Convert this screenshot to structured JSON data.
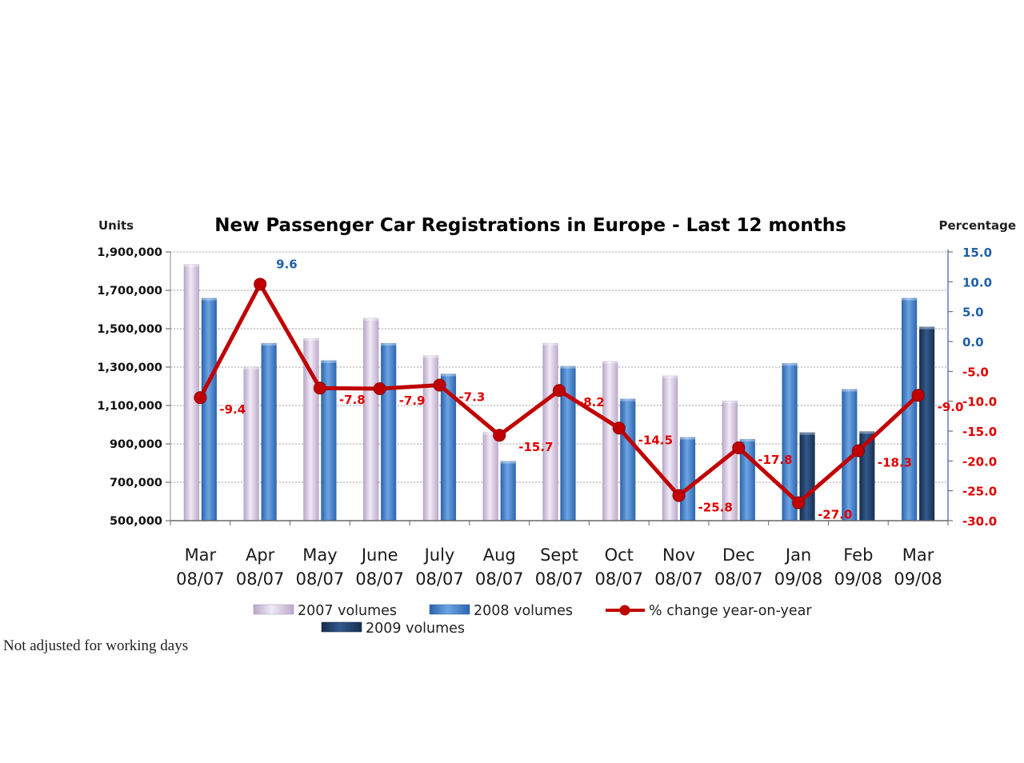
{
  "chart_data": {
    "type": "bar",
    "title": "New Passenger Car Registrations in Europe - Last 12 months",
    "left_axis_title": "Units",
    "right_axis_title": "Percentage",
    "categories": [
      {
        "line1": "Mar",
        "line2": "08/07"
      },
      {
        "line1": "Apr",
        "line2": "08/07"
      },
      {
        "line1": "May",
        "line2": "08/07"
      },
      {
        "line1": "June",
        "line2": "08/07"
      },
      {
        "line1": "July",
        "line2": "08/07"
      },
      {
        "line1": "Aug",
        "line2": "08/07"
      },
      {
        "line1": "Sept",
        "line2": "08/07"
      },
      {
        "line1": "Oct",
        "line2": "08/07"
      },
      {
        "line1": "Nov",
        "line2": "08/07"
      },
      {
        "line1": "Dec",
        "line2": "08/07"
      },
      {
        "line1": "Jan",
        "line2": "09/08"
      },
      {
        "line1": "Feb",
        "line2": "09/08"
      },
      {
        "line1": "Mar",
        "line2": "09/08"
      }
    ],
    "series": [
      {
        "name": "2007 volumes",
        "type": "bar",
        "color": "#d9c9e4",
        "values": [
          1835000,
          1300000,
          1450000,
          1555000,
          1360000,
          960000,
          1425000,
          1330000,
          1255000,
          1125000,
          null,
          null,
          null
        ]
      },
      {
        "name": "2008 volumes",
        "type": "bar",
        "color": "#3e7cc7",
        "values": [
          1660000,
          1425000,
          1335000,
          1425000,
          1265000,
          810000,
          1305000,
          1135000,
          935000,
          925000,
          1320000,
          1185000,
          1660000
        ]
      },
      {
        "name": "2009 volumes",
        "type": "bar",
        "color": "#1e3d66",
        "values": [
          null,
          null,
          null,
          null,
          null,
          null,
          null,
          null,
          null,
          null,
          960000,
          965000,
          1510000
        ]
      },
      {
        "name": "% change year-on-year",
        "type": "line",
        "axis": "right",
        "color": "#c00000",
        "values": [
          -9.4,
          9.6,
          -7.8,
          -7.9,
          -7.3,
          -15.7,
          -8.2,
          -14.5,
          -25.8,
          -17.8,
          -27.0,
          -18.3,
          -9.0
        ],
        "labels": [
          "-9.4",
          "9.6",
          "-7.8",
          "-7.9",
          "-7.3",
          "-15.7",
          "-8.2",
          "-14.5",
          "-25.8",
          "-17.8",
          "-27.0",
          "-18.3",
          "-9.0"
        ]
      }
    ],
    "y_left": {
      "min": 500000,
      "max": 1900000,
      "ticks": [
        500000,
        700000,
        900000,
        1100000,
        1300000,
        1500000,
        1700000,
        1900000
      ],
      "tick_labels": [
        "500,000",
        "700,000",
        "900,000",
        "1,100,000",
        "1,300,000",
        "1,500,000",
        "1,700,000",
        "1,900,000"
      ]
    },
    "y_right": {
      "min": -30,
      "max": 15,
      "ticks": [
        -30,
        -25,
        -20,
        -15,
        -10,
        -5,
        0,
        5,
        10,
        15
      ],
      "tick_labels": [
        "-30.0",
        "-25.0",
        "-20.0",
        "-15.0",
        "-10.0",
        "-5.0",
        "0.0",
        "5.0",
        "10.0",
        "15.0"
      ],
      "positive_color": "#1f5fa8",
      "negative_color": "#e00000"
    },
    "grid": true,
    "legend_position": "bottom"
  },
  "footnote": "Not adjusted for working days"
}
